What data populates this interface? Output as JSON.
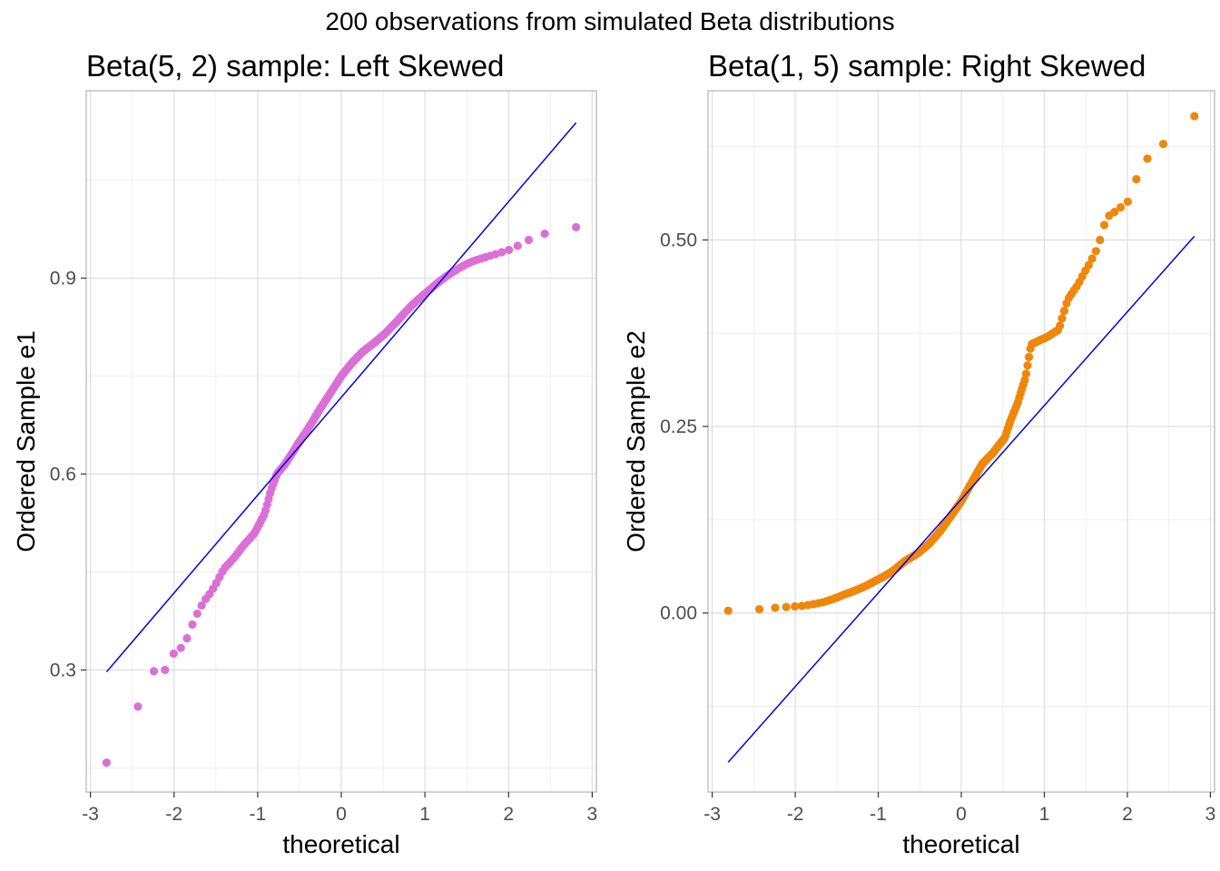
{
  "figure_title": "200 observations from simulated Beta distributions",
  "chart_data": [
    {
      "type": "scatter",
      "title": "Beta(5, 2) sample: Left Skewed",
      "xlabel": "theoretical",
      "ylabel": "Ordered Sample e1",
      "xlim": [
        -3.05,
        3.05
      ],
      "ylim": [
        0.113,
        1.187
      ],
      "xticks": [
        -3,
        -2,
        -1,
        0,
        1,
        2,
        3
      ],
      "xtick_labels": [
        "-3",
        "-2",
        "-1",
        "0",
        "1",
        "2",
        "3"
      ],
      "yticks": [
        0.3,
        0.6,
        0.9
      ],
      "ytick_labels": [
        "0.3",
        "0.6",
        "0.9"
      ],
      "y_minor": [
        0.15,
        0.45,
        0.75,
        1.05
      ],
      "grid": true,
      "point_color": "#da70d6",
      "line_color": "#0000ee",
      "reference_line": {
        "x": [
          -2.807,
          2.807
        ],
        "y": [
          0.297,
          1.138
        ]
      },
      "quantile_anchors": {
        "p": [
          0.0025,
          0.0075,
          0.0125,
          0.0175,
          0.0225,
          0.03,
          0.04,
          0.05,
          0.06,
          0.08,
          0.1,
          0.12,
          0.15,
          0.18,
          0.2,
          0.22,
          0.25,
          0.3,
          0.35,
          0.4,
          0.45,
          0.5,
          0.55,
          0.6,
          0.65,
          0.7,
          0.75,
          0.8,
          0.85,
          0.87,
          0.9,
          0.92,
          0.94,
          0.96,
          0.97,
          0.98,
          0.99,
          0.9975
        ],
        "y": [
          0.158,
          0.244,
          0.298,
          0.3,
          0.325,
          0.338,
          0.38,
          0.405,
          0.42,
          0.455,
          0.472,
          0.49,
          0.51,
          0.54,
          0.575,
          0.6,
          0.615,
          0.645,
          0.672,
          0.7,
          0.725,
          0.75,
          0.77,
          0.787,
          0.8,
          0.815,
          0.835,
          0.858,
          0.88,
          0.89,
          0.905,
          0.915,
          0.925,
          0.933,
          0.938,
          0.945,
          0.963,
          0.978
        ]
      }
    },
    {
      "type": "scatter",
      "title": "Beta(1, 5) sample: Right Skewed",
      "xlabel": "theoretical",
      "ylabel": "Ordered Sample e2",
      "xlim": [
        -3.05,
        3.05
      ],
      "ylim": [
        -0.24,
        0.7
      ],
      "xticks": [
        -3,
        -2,
        -1,
        0,
        1,
        2,
        3
      ],
      "xtick_labels": [
        "-3",
        "-2",
        "-1",
        "0",
        "1",
        "2",
        "3"
      ],
      "yticks": [
        0.0,
        0.25,
        0.5
      ],
      "ytick_labels": [
        "0.00",
        "0.25",
        "0.50"
      ],
      "y_minor": [
        -0.125,
        0.125,
        0.375,
        0.625
      ],
      "grid": true,
      "point_color": "#f0860a",
      "line_color": "#0000ee",
      "reference_line": {
        "x": [
          -2.807,
          2.807
        ],
        "y": [
          -0.2,
          0.505
        ]
      },
      "quantile_anchors": {
        "p": [
          0.0025,
          0.0075,
          0.0125,
          0.0175,
          0.03,
          0.05,
          0.08,
          0.1,
          0.12,
          0.15,
          0.2,
          0.25,
          0.3,
          0.35,
          0.4,
          0.45,
          0.5,
          0.55,
          0.6,
          0.65,
          0.7,
          0.72,
          0.75,
          0.78,
          0.8,
          0.85,
          0.88,
          0.9,
          0.92,
          0.94,
          0.95,
          0.96,
          0.97,
          0.98,
          0.985,
          0.99,
          0.9975
        ],
        "y": [
          0.003,
          0.005,
          0.007,
          0.008,
          0.01,
          0.015,
          0.025,
          0.03,
          0.035,
          0.043,
          0.055,
          0.07,
          0.08,
          0.093,
          0.11,
          0.13,
          0.15,
          0.175,
          0.2,
          0.215,
          0.235,
          0.255,
          0.28,
          0.315,
          0.36,
          0.37,
          0.38,
          0.42,
          0.44,
          0.47,
          0.49,
          0.53,
          0.54,
          0.555,
          0.608,
          0.61,
          0.666
        ]
      }
    }
  ]
}
